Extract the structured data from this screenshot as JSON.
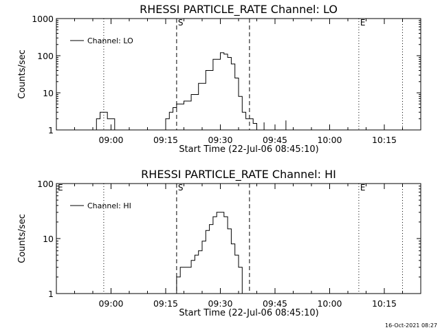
{
  "footer": {
    "timestamp": "16-Oct-2021 08:27"
  },
  "chart_data": [
    {
      "type": "line",
      "title": "RHESSI PARTICLE_RATE Channel: LO",
      "xlabel": "Start Time (22-Jul-06 08:45:10)",
      "ylabel": "Counts/sec",
      "y_scale": "log",
      "ylim": [
        1,
        1000
      ],
      "yticks": [
        1,
        10,
        100,
        1000
      ],
      "ytick_labels": [
        "1",
        "10",
        "100",
        "1000"
      ],
      "xlim_minutes_after_0845": [
        0,
        100
      ],
      "xticks": [
        "09:00",
        "09:15",
        "09:30",
        "09:45",
        "10:00",
        "10:15"
      ],
      "legend": {
        "entries": [
          "Channel: LO"
        ],
        "position": "top-left"
      },
      "markers": [
        {
          "time": "09:18",
          "style": "dashed",
          "label": "S"
        },
        {
          "time": "09:38",
          "style": "dashed",
          "label": ""
        },
        {
          "time": "08:58",
          "style": "dotted",
          "label": ""
        },
        {
          "time": "10:08",
          "style": "dotted",
          "label": "E"
        },
        {
          "time": "10:20",
          "style": "dotted",
          "label": ""
        }
      ],
      "series": [
        {
          "name": "Channel: LO",
          "segments": [
            {
              "x": [
                "08:55",
                "08:56",
                "08:57",
                "08:58",
                "08:59",
                "09:00",
                "09:01"
              ],
              "y": [
                1,
                2,
                3,
                3,
                2,
                2,
                1
              ]
            },
            {
              "x": [
                "09:14",
                "09:15",
                "09:16",
                "09:17",
                "09:18",
                "09:19",
                "09:20",
                "09:22",
                "09:24",
                "09:26",
                "09:28",
                "09:30",
                "09:31",
                "09:32",
                "09:33",
                "09:34",
                "09:35",
                "09:36",
                "09:37",
                "09:38",
                "09:39",
                "09:40"
              ],
              "y": [
                1,
                2,
                3,
                4,
                5,
                5,
                6,
                9,
                18,
                40,
                80,
                120,
                110,
                90,
                60,
                25,
                8,
                3,
                2,
                2,
                1.5,
                1
              ]
            },
            {
              "x": [
                "09:42",
                "09:42"
              ],
              "y": [
                1,
                1.6
              ]
            },
            {
              "x": [
                "09:48",
                "09:48"
              ],
              "y": [
                1,
                1.8
              ]
            }
          ]
        }
      ]
    },
    {
      "type": "line",
      "title": "RHESSI PARTICLE_RATE Channel: HI",
      "xlabel": "Start Time (22-Jul-06 08:45:10)",
      "ylabel": "Counts/sec",
      "y_scale": "log",
      "ylim": [
        1,
        100
      ],
      "yticks": [
        1,
        10,
        100
      ],
      "ytick_labels": [
        "1",
        "10",
        "100"
      ],
      "xlim_minutes_after_0845": [
        0,
        100
      ],
      "xticks": [
        "09:00",
        "09:15",
        "09:30",
        "09:45",
        "10:00",
        "10:15"
      ],
      "legend": {
        "entries": [
          "Channel: HI"
        ],
        "position": "top-left"
      },
      "markers": [
        {
          "time": "08:45",
          "style": "none",
          "label": "E"
        },
        {
          "time": "09:18",
          "style": "dashed",
          "label": "S"
        },
        {
          "time": "09:38",
          "style": "dashed",
          "label": ""
        },
        {
          "time": "08:58",
          "style": "dotted",
          "label": ""
        },
        {
          "time": "10:08",
          "style": "dotted",
          "label": "E"
        },
        {
          "time": "10:20",
          "style": "dotted",
          "label": ""
        }
      ],
      "series": [
        {
          "name": "Channel: HI",
          "segments": [
            {
              "x": [
                "09:17",
                "09:18",
                "09:19",
                "09:20",
                "09:21",
                "09:22",
                "09:23",
                "09:24",
                "09:25",
                "09:26",
                "09:27",
                "09:28",
                "09:29",
                "09:30",
                "09:31",
                "09:32",
                "09:33",
                "09:34",
                "09:35",
                "09:36",
                "09:36"
              ],
              "y": [
                1,
                2,
                3,
                3,
                3,
                4,
                5,
                6,
                9,
                14,
                18,
                25,
                30,
                30,
                25,
                15,
                8,
                5,
                3,
                2,
                1
              ]
            }
          ]
        }
      ]
    }
  ]
}
